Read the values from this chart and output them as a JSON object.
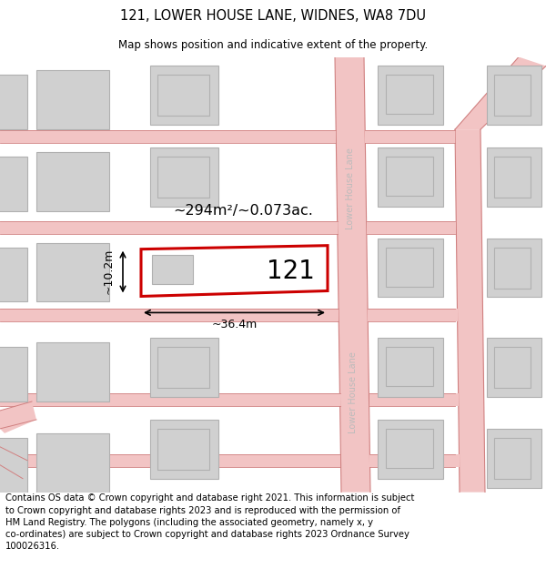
{
  "title": "121, LOWER HOUSE LANE, WIDNES, WA8 7DU",
  "subtitle": "Map shows position and indicative extent of the property.",
  "footer": "Contains OS data © Crown copyright and database right 2021. This information is subject\nto Crown copyright and database rights 2023 and is reproduced with the permission of\nHM Land Registry. The polygons (including the associated geometry, namely x, y\nco-ordinates) are subject to Crown copyright and database rights 2023 Ordnance Survey\n100026316.",
  "bg_color": "#ffffff",
  "map_bg": "#f8f8f8",
  "road_color": "#f2c4c4",
  "road_edge_color": "#d08080",
  "plot_outline_color": "#cc0000",
  "plot_fill_color": "#ffffff",
  "building_fill_color": "#d0d0d0",
  "building_edge_color": "#b0b0b0",
  "street_label_color": "#bbbbbb",
  "dim_color": "#000000",
  "label_121": "121",
  "area_label": "~294m²/~0.073ac.",
  "width_label": "~36.4m",
  "height_label": "~10.2m",
  "street_name": "Lower House Lane",
  "title_fontsize": 10.5,
  "subtitle_fontsize": 8.5,
  "footer_fontsize": 7.2
}
